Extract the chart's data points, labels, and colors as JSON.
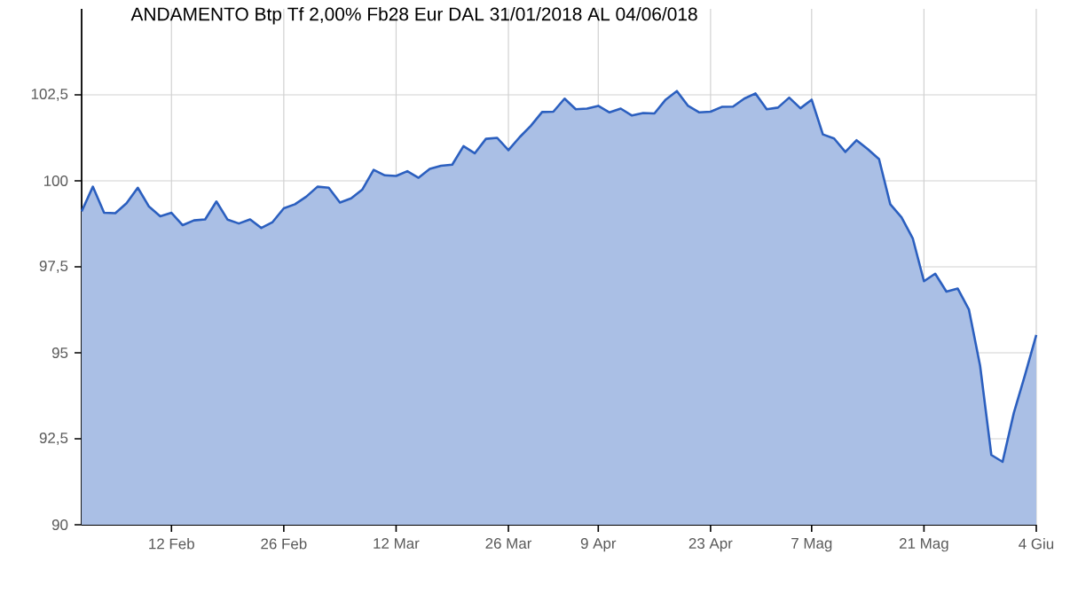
{
  "chart_data": {
    "type": "area",
    "title": "ANDAMENTO Btp Tf 2,00% Fb28 Eur DAL 31/01/2018 AL 04/06/018",
    "categories": [
      null,
      null,
      null,
      null,
      null,
      null,
      null,
      null,
      "12 Feb",
      null,
      null,
      null,
      null,
      null,
      null,
      null,
      null,
      null,
      "26 Feb",
      null,
      null,
      null,
      null,
      null,
      null,
      null,
      null,
      null,
      "12 Mar",
      null,
      null,
      null,
      null,
      null,
      null,
      null,
      null,
      null,
      "26 Mar",
      null,
      null,
      null,
      null,
      null,
      null,
      null,
      "9 Apr",
      null,
      null,
      null,
      null,
      null,
      null,
      null,
      null,
      null,
      "23 Apr",
      null,
      null,
      null,
      null,
      null,
      null,
      null,
      null,
      "7 Mag",
      null,
      null,
      null,
      null,
      null,
      null,
      null,
      null,
      null,
      "21 Mag",
      null,
      null,
      null,
      null,
      null,
      null,
      null,
      null,
      null,
      "4 Giu"
    ],
    "series": [
      {
        "color": "#2b5fbf",
        "values": [
          99.11,
          99.83,
          99.07,
          99.06,
          99.35,
          99.8,
          99.25,
          98.97,
          99.07,
          98.71,
          98.85,
          98.88,
          99.4,
          98.87,
          98.76,
          98.88,
          98.63,
          98.8,
          99.2,
          99.32,
          99.54,
          99.83,
          99.8,
          99.37,
          99.49,
          99.75,
          100.32,
          100.16,
          100.14,
          100.28,
          100.09,
          100.35,
          100.44,
          100.47,
          101.01,
          100.8,
          101.22,
          101.25,
          100.89,
          101.27,
          101.6,
          102.0,
          102.01,
          102.39,
          102.08,
          102.1,
          102.18,
          101.99,
          102.1,
          101.9,
          101.97,
          101.96,
          102.36,
          102.61,
          102.18,
          101.99,
          102.01,
          102.15,
          102.16,
          102.39,
          102.54,
          102.08,
          102.13,
          102.42,
          102.11,
          102.36,
          101.35,
          101.23,
          100.84,
          101.18,
          100.92,
          100.63,
          99.32,
          98.94,
          98.33,
          97.08,
          97.3,
          96.78,
          96.87,
          96.26,
          94.62,
          92.03,
          91.83,
          93.25,
          94.36,
          95.52
        ]
      }
    ],
    "ylim": [
      90,
      105
    ],
    "yticks": [
      90,
      {
        "value": 92.5,
        "label": "92,5"
      },
      95,
      {
        "value": 97.5,
        "label": "97,5"
      },
      100,
      {
        "value": 102.5,
        "label": "102,5"
      }
    ],
    "grid": true,
    "marker": "none",
    "line_style": "solid"
  }
}
